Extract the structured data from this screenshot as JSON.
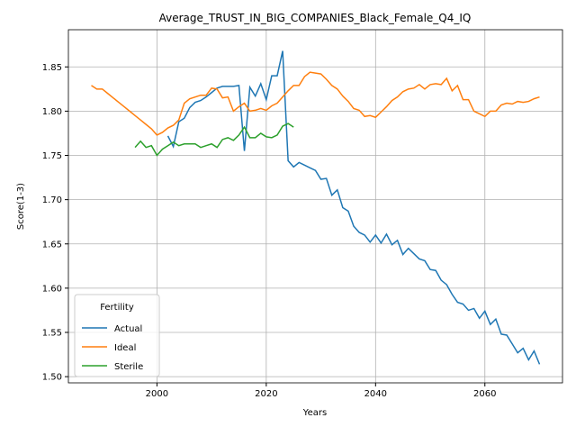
{
  "chart_data": {
    "type": "line",
    "title": "Average_TRUST_IN_BIG_COMPANIES_Black_Female_Q4_IQ",
    "x_label": "Years",
    "y_label": "Score(1-3)",
    "x": [
      1988,
      1989,
      1990,
      1991,
      1992,
      1993,
      1994,
      1995,
      1996,
      1997,
      1998,
      1999,
      2000,
      2001,
      2002,
      2003,
      2004,
      2005,
      2006,
      2007,
      2008,
      2009,
      2010,
      2011,
      2012,
      2013,
      2014,
      2015,
      2016,
      2017,
      2018,
      2019,
      2020,
      2021,
      2022,
      2023,
      2024,
      2025,
      2026,
      2027,
      2028,
      2029,
      2030,
      2031,
      2032,
      2033,
      2034,
      2035,
      2036,
      2037,
      2038,
      2039,
      2040,
      2041,
      2042,
      2043,
      2044,
      2045,
      2046,
      2047,
      2048,
      2049,
      2050,
      2051,
      2052,
      2053,
      2054,
      2055,
      2056,
      2057,
      2058,
      2059,
      2060,
      2061,
      2062,
      2063,
      2064,
      2065,
      2066,
      2067,
      2068,
      2069,
      2070
    ],
    "series": [
      {
        "name": "Actual",
        "color": "#1f77b4",
        "values": [
          null,
          null,
          null,
          null,
          null,
          null,
          null,
          null,
          null,
          null,
          null,
          null,
          null,
          null,
          1.772,
          1.76,
          1.788,
          1.792,
          1.804,
          1.81,
          1.812,
          1.816,
          1.821,
          1.826,
          1.828,
          1.828,
          1.828,
          1.829,
          1.755,
          1.827,
          1.817,
          1.831,
          1.813,
          1.84,
          1.84,
          1.868,
          1.744,
          1.737,
          1.742,
          1.739,
          1.736,
          1.733,
          1.723,
          1.724,
          1.705,
          1.711,
          1.691,
          1.687,
          1.67,
          1.663,
          1.66,
          1.652,
          1.66,
          1.651,
          1.661,
          1.649,
          1.654,
          1.638,
          1.645,
          1.639,
          1.633,
          1.631,
          1.621,
          1.62,
          1.609,
          1.604,
          1.593,
          1.584,
          1.582,
          1.575,
          1.577,
          1.566,
          1.574,
          1.559,
          1.565,
          1.548,
          1.547,
          1.537,
          1.527,
          1.532,
          1.519,
          1.529,
          1.514
        ]
      },
      {
        "name": "Ideal",
        "color": "#ff7f0e",
        "values": [
          1.829,
          1.825,
          1.825,
          1.82,
          1.815,
          1.81,
          1.805,
          1.8,
          1.795,
          1.79,
          1.785,
          1.78,
          1.773,
          1.776,
          1.781,
          1.784,
          1.79,
          1.809,
          1.814,
          1.816,
          1.818,
          1.818,
          1.826,
          1.825,
          1.815,
          1.816,
          1.8,
          1.805,
          1.809,
          1.8,
          1.801,
          1.803,
          1.801,
          1.806,
          1.809,
          1.816,
          1.823,
          1.829,
          1.829,
          1.839,
          1.844,
          1.843,
          1.842,
          1.836,
          1.829,
          1.825,
          1.817,
          1.811,
          1.803,
          1.801,
          1.794,
          1.795,
          1.793,
          1.799,
          1.805,
          1.812,
          1.816,
          1.822,
          1.825,
          1.826,
          1.83,
          1.825,
          1.83,
          1.831,
          1.83,
          1.837,
          1.823,
          1.829,
          1.813,
          1.813,
          1.8,
          1.797,
          1.794,
          1.8,
          1.8,
          1.807,
          1.809,
          1.808,
          1.811,
          1.81,
          1.811,
          1.814,
          1.816
        ]
      },
      {
        "name": "Sterile",
        "color": "#2ca02c",
        "values": [
          null,
          null,
          null,
          null,
          null,
          null,
          null,
          null,
          1.759,
          1.766,
          1.759,
          1.761,
          1.75,
          1.757,
          1.761,
          1.765,
          1.761,
          1.763,
          1.763,
          1.763,
          1.759,
          1.761,
          1.763,
          1.759,
          1.768,
          1.77,
          1.767,
          1.773,
          1.782,
          1.77,
          1.77,
          1.775,
          1.771,
          1.77,
          1.773,
          1.783,
          1.786,
          1.782,
          null,
          null,
          null,
          null,
          null,
          null,
          null,
          null,
          null,
          null,
          null,
          null,
          null,
          null,
          null,
          null,
          null,
          null,
          null,
          null,
          null,
          null,
          null,
          null,
          null,
          null,
          null,
          null,
          null,
          null,
          null,
          null,
          null,
          null,
          null,
          null,
          null,
          null,
          null,
          null,
          null,
          null,
          null,
          null,
          null
        ]
      }
    ],
    "xlim": [
      1983.8,
      2074.2
    ],
    "ylim": [
      1.493,
      1.892
    ],
    "xticks": [
      2000,
      2020,
      2040,
      2060
    ],
    "yticks": [
      {
        "value": 1.5,
        "label": "1.50"
      },
      1.55,
      {
        "value": 1.6,
        "label": "1.60"
      },
      1.65,
      {
        "value": 1.7,
        "label": "1.70"
      },
      1.75,
      {
        "value": 1.8,
        "label": "1.80"
      },
      1.85
    ],
    "grid": true,
    "legend_title": "Fertility",
    "legend_position": "lower-left"
  }
}
